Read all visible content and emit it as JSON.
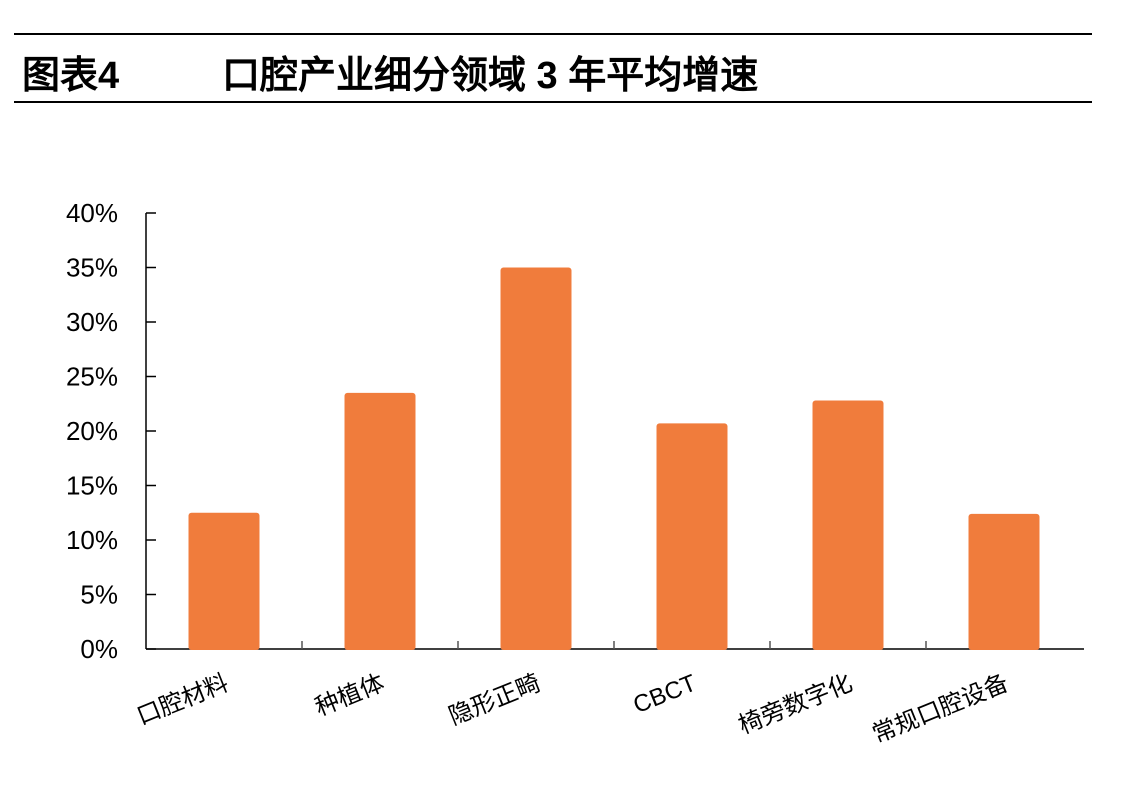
{
  "header": {
    "figure_label": "图表4",
    "title": "口腔产业细分领域 3 年平均增速"
  },
  "chart_data": {
    "type": "bar",
    "title": "口腔产业细分领域 3 年平均增速",
    "categories": [
      "口腔材料",
      "种植体",
      "隐形正畸",
      "CBCT",
      "椅旁数字化",
      "常规口腔设备"
    ],
    "values": [
      12.5,
      23.5,
      35.0,
      20.7,
      22.8,
      12.4
    ],
    "unit": "%",
    "xlabel": "",
    "ylabel": "",
    "ylim": [
      0,
      40
    ],
    "yticks": [
      "0%",
      "5%",
      "10%",
      "15%",
      "20%",
      "25%",
      "30%",
      "35%",
      "40%"
    ],
    "grid": false,
    "legend": "none",
    "bar_color": "#F07C3C"
  }
}
